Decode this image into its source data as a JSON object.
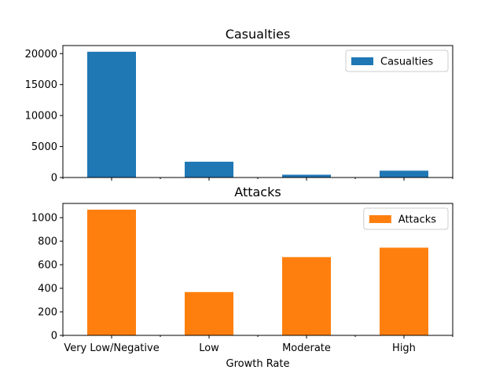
{
  "chart_data": [
    {
      "type": "bar",
      "title": "Casualties",
      "categories": [
        "Very Low/Negative",
        "Low",
        "Moderate",
        "High"
      ],
      "series": [
        {
          "name": "Casualties",
          "values": [
            20300,
            2550,
            450,
            1100
          ],
          "color": "#1f77b4"
        }
      ],
      "ylim": [
        0,
        21300
      ],
      "yticks": [
        0,
        5000,
        10000,
        15000,
        20000
      ],
      "show_xtick_labels": false,
      "legend": "upper right",
      "grid": false
    },
    {
      "type": "bar",
      "title": "Attacks",
      "categories": [
        "Very Low/Negative",
        "Low",
        "Moderate",
        "High"
      ],
      "series": [
        {
          "name": "Attacks",
          "values": [
            1068,
            368,
            665,
            745
          ],
          "color": "#ff7f0e"
        }
      ],
      "ylim": [
        0,
        1121
      ],
      "yticks": [
        0,
        200,
        400,
        600,
        800,
        1000
      ],
      "xlabel": "Growth Rate",
      "show_xtick_labels": true,
      "legend": "upper right",
      "grid": false
    }
  ]
}
